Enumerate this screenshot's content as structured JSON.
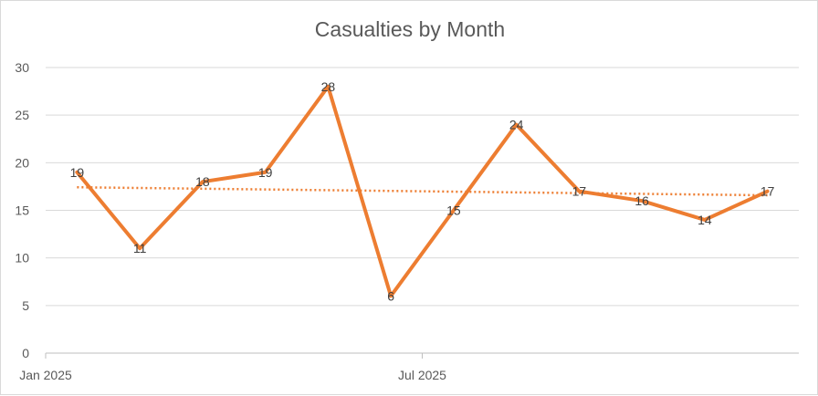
{
  "chart_data": {
    "type": "line",
    "title": "Casualties by Month",
    "xlabel": "",
    "ylabel": "",
    "ylim": [
      0,
      30
    ],
    "y_ticks": [
      0,
      5,
      10,
      15,
      20,
      25,
      30
    ],
    "x": [
      "2025-01",
      "2025-02",
      "2025-03",
      "2025-04",
      "2025-05",
      "2025-06",
      "2025-07",
      "2025-08",
      "2025-09",
      "2025-10",
      "2025-11",
      "2025-12"
    ],
    "x_tick_labels": [
      {
        "x": "2025-01",
        "label": "Jan 2025"
      },
      {
        "x": "2025-07",
        "label": "Jul 2025"
      }
    ],
    "series": [
      {
        "values": [
          19,
          11,
          18,
          19,
          28,
          6,
          15,
          24,
          17,
          16,
          14,
          17
        ],
        "color": "#ED7D31"
      }
    ],
    "trendline": {
      "type": "linear",
      "color": "#ED7D31",
      "style": "dotted"
    },
    "data_labels": true,
    "grid": true,
    "legend": "none"
  }
}
